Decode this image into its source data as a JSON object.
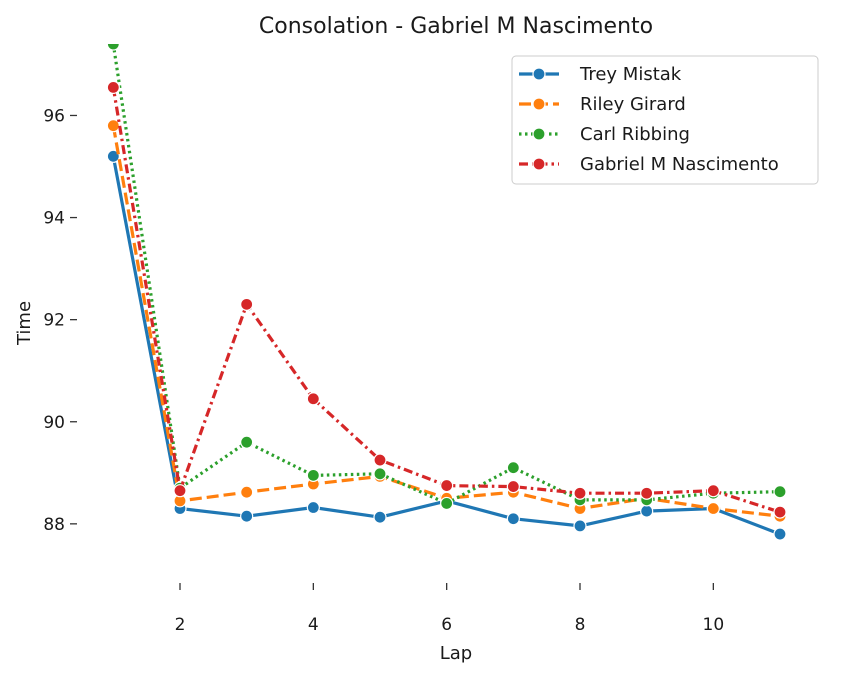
{
  "chart_data": {
    "type": "line",
    "title": "Consolation - Gabriel M Nascimento",
    "xlabel": "Lap",
    "ylabel": "Time",
    "xlim": [
      0.5,
      11.6
    ],
    "ylim": [
      86.9,
      97.4
    ],
    "xticks": [
      2,
      4,
      6,
      8,
      10
    ],
    "yticks": [
      88,
      90,
      92,
      94,
      96
    ],
    "grid": false,
    "legend_position": "top-right",
    "x": [
      1,
      2,
      3,
      4,
      5,
      6,
      7,
      8,
      9,
      10,
      11
    ],
    "series": [
      {
        "name": "Trey Mistak",
        "color": "#1f77b4",
        "dash": "solid",
        "values": [
          95.2,
          88.3,
          88.15,
          88.32,
          88.13,
          88.45,
          88.1,
          87.96,
          88.25,
          88.3,
          87.8
        ]
      },
      {
        "name": "Riley Girard",
        "color": "#ff7f0e",
        "dash": "dashed",
        "values": [
          95.8,
          88.45,
          88.62,
          88.78,
          88.93,
          88.5,
          88.62,
          88.3,
          88.5,
          88.3,
          88.15
        ]
      },
      {
        "name": "Carl Ribbing",
        "color": "#2ca02c",
        "dash": "dotted",
        "values": [
          97.4,
          88.7,
          89.6,
          88.95,
          88.98,
          88.4,
          89.1,
          88.47,
          88.47,
          88.6,
          88.63
        ]
      },
      {
        "name": "Gabriel M Nascimento",
        "color": "#d62728",
        "dash": "dashdot",
        "values": [
          96.55,
          88.65,
          92.3,
          90.45,
          89.25,
          88.75,
          88.73,
          88.6,
          88.6,
          88.65,
          88.23
        ]
      }
    ]
  }
}
